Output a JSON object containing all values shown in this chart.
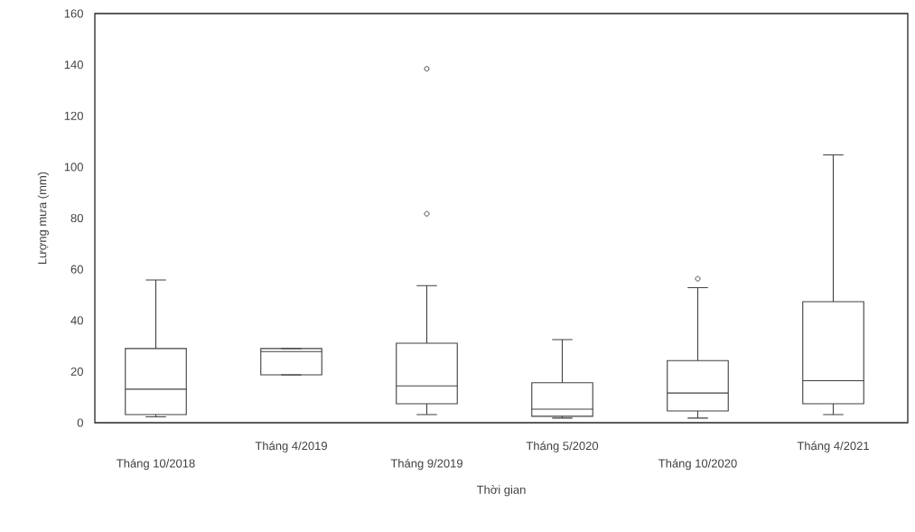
{
  "chart_data": {
    "type": "box",
    "xlabel": "Thời gian",
    "ylabel": "Lượng mưa (mm)",
    "color": "#404040",
    "categories": [
      "Tháng 10/2018",
      "Tháng 4/2019",
      "Tháng 9/2019",
      "Tháng 5/2020",
      "Tháng 10/2020",
      "Tháng 4/2021"
    ],
    "boxes": [
      {
        "low": 2.3,
        "q1": 3.2,
        "median": 13.1,
        "q3": 29,
        "high": 55.8
      },
      {
        "low": 18.7,
        "q1": 18.7,
        "median": 27.8,
        "q3": 29,
        "high": 29
      },
      {
        "low": 3.2,
        "q1": 7.4,
        "median": 14.4,
        "q3": 31.1,
        "high": 53.6,
        "outliers": [
          138.4,
          81.7
        ]
      },
      {
        "low": 1.8,
        "q1": 2.5,
        "median": 5.3,
        "q3": 15.6,
        "high": 32.5
      },
      {
        "low": 1.8,
        "q1": 4.6,
        "median": 11.6,
        "q3": 24.3,
        "high": 52.8,
        "outliers": [
          56.3
        ]
      },
      {
        "low": 3.2,
        "q1": 7.4,
        "median": 16.4,
        "q3": 47.3,
        "high": 104.7
      }
    ],
    "ylim": [
      0,
      160
    ],
    "yticks": [
      0,
      20,
      40,
      60,
      80,
      100,
      120,
      140,
      160
    ]
  }
}
